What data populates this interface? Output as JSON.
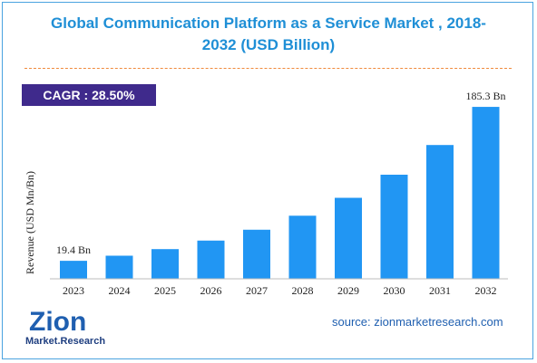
{
  "title_line1": "Global Communication Platform as a Service Market , 2018-",
  "title_line2": "2032 (USD Billion)",
  "cagr_label": "CAGR : 28.50%",
  "source": "source: zionmarketresearch.com",
  "logo": {
    "main": "Zion",
    "sub": "Market.Research"
  },
  "colors": {
    "bar": "#2196f3",
    "title": "#1f8fd6",
    "cagr_bg": "#3f2a8c",
    "divider": "#f08a3c"
  },
  "chart_data": {
    "type": "bar",
    "ylabel": "Revenue (USD Mn/Bn)",
    "xlabel": "",
    "categories": [
      "2023",
      "2024",
      "2025",
      "2026",
      "2027",
      "2028",
      "2029",
      "2030",
      "2031",
      "2032"
    ],
    "values": [
      19.4,
      24.9,
      32.0,
      41.2,
      52.9,
      68.0,
      87.3,
      112.2,
      144.2,
      185.3
    ],
    "ylim": [
      0,
      200
    ],
    "grid": false,
    "legend": "none",
    "annotations": [
      {
        "category": "2023",
        "text": "19.4 Bn"
      },
      {
        "category": "2032",
        "text": "185.3 Bn"
      }
    ]
  }
}
